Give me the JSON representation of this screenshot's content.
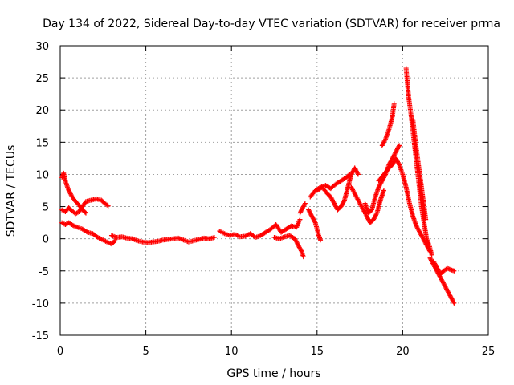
{
  "chart_data": {
    "type": "scatter",
    "title": "Day 134 of 2022, Sidereal Day-to-day VTEC variation (SDTVAR) for receiver prma",
    "xlabel": "GPS time / hours",
    "ylabel": "SDTVAR / TECUs",
    "xlim": [
      0,
      25
    ],
    "ylim": [
      -15,
      30
    ],
    "xticks": [
      0,
      5,
      10,
      15,
      20,
      25
    ],
    "yticks": [
      -15,
      -10,
      -5,
      0,
      5,
      10,
      15,
      20,
      25,
      30
    ],
    "grid": true,
    "marker": "+",
    "color": "#ff0000",
    "series": [
      {
        "name": "s1",
        "x": [
          0.1,
          0.2,
          0.3,
          0.4,
          0.5,
          0.7,
          0.9,
          1.1,
          1.3,
          1.5
        ],
        "y": [
          9.5,
          10.2,
          9.0,
          8.2,
          7.5,
          6.5,
          5.8,
          5.2,
          4.5,
          4.0
        ]
      },
      {
        "name": "s2",
        "x": [
          0.1,
          0.3,
          0.5,
          0.7,
          0.9,
          1.1,
          1.3,
          1.5,
          1.8,
          2.1,
          2.4,
          2.6,
          2.8
        ],
        "y": [
          4.5,
          4.2,
          4.8,
          4.3,
          3.9,
          4.2,
          5.0,
          5.8,
          6.0,
          6.2,
          6.0,
          5.5,
          5.1
        ]
      },
      {
        "name": "s3",
        "x": [
          0.1,
          0.3,
          0.5,
          0.8,
          1.0,
          1.3,
          1.6,
          1.9,
          2.2,
          2.5,
          2.8,
          3.0,
          3.2
        ],
        "y": [
          2.5,
          2.2,
          2.5,
          2.0,
          1.8,
          1.5,
          1.0,
          0.8,
          0.2,
          -0.2,
          -0.6,
          -0.8,
          -0.3
        ]
      },
      {
        "name": "s4",
        "x": [
          3.0,
          3.3,
          3.6,
          3.9,
          4.2,
          4.5,
          4.8,
          5.1,
          5.4,
          5.7,
          6.0,
          6.3,
          6.6,
          6.9,
          7.2,
          7.5,
          7.8,
          8.1,
          8.4,
          8.7,
          9.0
        ],
        "y": [
          0.5,
          0.2,
          0.3,
          0.1,
          0.0,
          -0.3,
          -0.5,
          -0.6,
          -0.5,
          -0.4,
          -0.2,
          -0.1,
          0.0,
          0.1,
          -0.2,
          -0.5,
          -0.3,
          -0.1,
          0.1,
          0.0,
          0.2
        ]
      },
      {
        "name": "s5",
        "x": [
          9.3,
          9.6,
          9.9,
          10.2,
          10.5,
          10.8,
          11.1,
          11.4,
          11.7,
          12.0,
          12.3,
          12.6,
          12.9,
          13.2,
          13.5,
          13.8,
          14.0
        ],
        "y": [
          1.2,
          0.8,
          0.5,
          0.7,
          0.3,
          0.4,
          0.8,
          0.2,
          0.5,
          1.0,
          1.5,
          2.2,
          1.0,
          1.5,
          2.0,
          1.8,
          3.0
        ]
      },
      {
        "name": "s6",
        "x": [
          12.5,
          12.8,
          13.1,
          13.4,
          13.7,
          13.9,
          14.1,
          14.2
        ],
        "y": [
          0.2,
          0.0,
          0.3,
          0.5,
          0.0,
          -1.0,
          -2.0,
          -2.8
        ]
      },
      {
        "name": "s7",
        "x": [
          14.0,
          14.2,
          14.3
        ],
        "y": [
          4.0,
          5.0,
          5.5
        ]
      },
      {
        "name": "s8",
        "x": [
          14.5,
          14.7,
          14.9,
          15.0,
          15.1,
          15.2
        ],
        "y": [
          4.5,
          3.5,
          2.5,
          1.5,
          0.5,
          -0.2
        ]
      },
      {
        "name": "s9",
        "x": [
          14.6,
          14.9,
          15.2,
          15.5,
          15.8,
          16.1,
          16.4,
          16.7,
          16.9
        ],
        "y": [
          6.5,
          7.5,
          8.0,
          8.3,
          7.8,
          8.5,
          9.0,
          9.5,
          10.0
        ]
      },
      {
        "name": "s10",
        "x": [
          15.0,
          15.3,
          15.6,
          15.8,
          16.0,
          16.2,
          16.4,
          16.6,
          16.8,
          17.0,
          17.2,
          17.4
        ],
        "y": [
          7.5,
          8.0,
          7.0,
          6.5,
          5.5,
          4.5,
          5.0,
          6.0,
          8.0,
          10.0,
          11.0,
          10.0
        ]
      },
      {
        "name": "s11",
        "x": [
          17.0,
          17.3,
          17.6,
          17.9,
          18.1,
          18.3,
          18.5,
          18.7,
          18.9
        ],
        "y": [
          8.0,
          6.5,
          5.0,
          3.5,
          2.5,
          3.0,
          4.0,
          6.0,
          7.5
        ]
      },
      {
        "name": "s12",
        "x": [
          17.8,
          18.0,
          18.2,
          18.4,
          18.6,
          18.8,
          19.0,
          19.2,
          19.4,
          19.6,
          19.8
        ],
        "y": [
          5.5,
          4.0,
          4.5,
          6.5,
          8.0,
          9.0,
          10.0,
          11.5,
          12.5,
          13.5,
          14.5
        ]
      },
      {
        "name": "s13",
        "x": [
          18.8,
          19.0,
          19.2,
          19.4,
          19.5
        ],
        "y": [
          14.5,
          15.5,
          17.0,
          19.0,
          21.0
        ]
      },
      {
        "name": "s14",
        "x": [
          18.6,
          18.9,
          19.2,
          19.4,
          19.6,
          19.8,
          20.0,
          20.2,
          20.4,
          20.6,
          20.8,
          21.0,
          21.2,
          21.4,
          21.6
        ],
        "y": [
          9.0,
          10.0,
          11.0,
          11.5,
          12.5,
          11.5,
          10.0,
          8.0,
          5.5,
          3.5,
          2.0,
          1.0,
          0.0,
          -1.0,
          -2.0
        ]
      },
      {
        "name": "s15",
        "x": [
          20.2,
          20.35,
          20.5,
          20.65,
          20.8,
          20.95,
          21.1,
          21.25,
          21.4,
          21.55,
          21.7
        ],
        "y": [
          26.5,
          22.0,
          19.0,
          15.5,
          12.0,
          8.5,
          5.0,
          2.5,
          0.0,
          -1.0,
          -2.5
        ]
      },
      {
        "name": "s16",
        "x": [
          20.6,
          20.75,
          20.9,
          21.05,
          21.2,
          21.35
        ],
        "y": [
          18.5,
          15.0,
          12.0,
          9.0,
          6.0,
          3.0
        ]
      },
      {
        "name": "s17",
        "x": [
          21.6,
          21.8,
          22.0,
          22.2,
          22.4,
          22.6,
          22.8,
          23.0
        ],
        "y": [
          -3.0,
          -4.0,
          -5.0,
          -6.0,
          -7.0,
          -8.0,
          -9.0,
          -10.0
        ]
      },
      {
        "name": "s18",
        "x": [
          21.8,
          22.0,
          22.2,
          22.4,
          22.6,
          22.8,
          23.0
        ],
        "y": [
          -3.5,
          -4.5,
          -5.5,
          -5.0,
          -4.6,
          -4.8,
          -5.0
        ]
      }
    ]
  }
}
